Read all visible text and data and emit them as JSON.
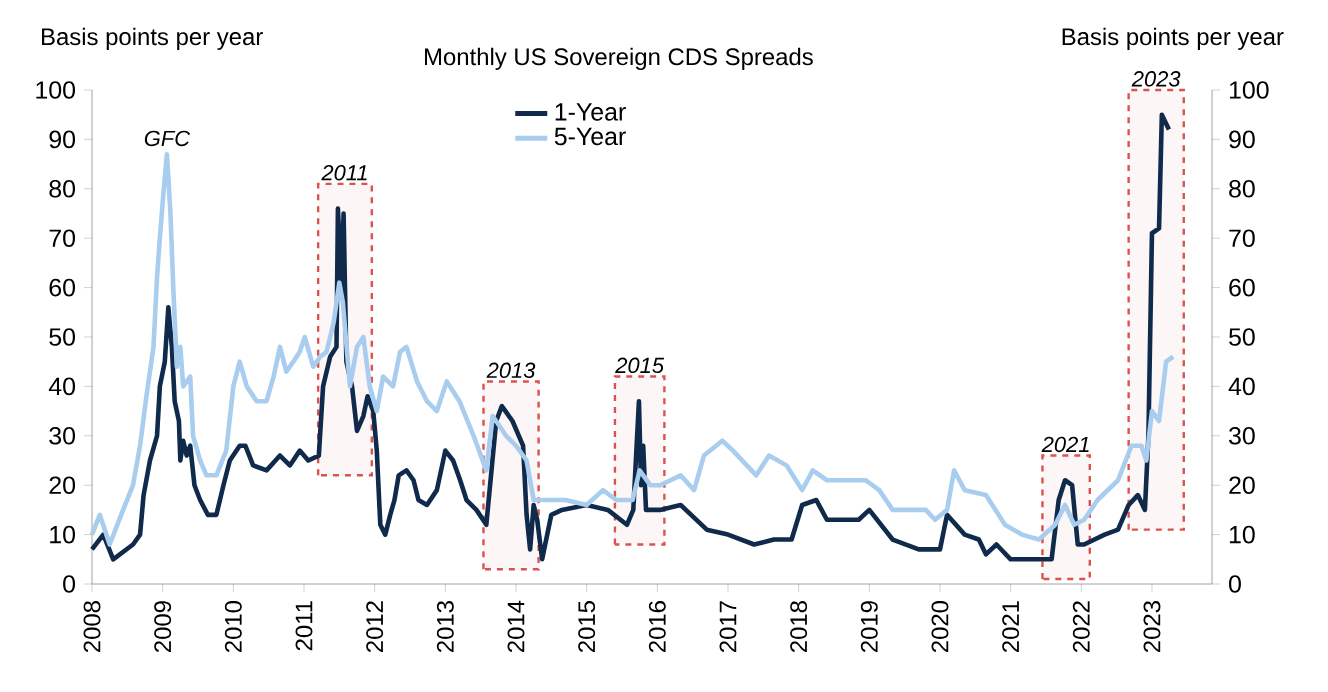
{
  "chart_data": {
    "type": "line",
    "title": "Monthly US Sovereign CDS Spreads",
    "ylabel": "Basis points per year",
    "y2label": "Basis points per year",
    "xlim": [
      2008,
      2023.85
    ],
    "xticks": [
      2008,
      2009,
      2010,
      2011,
      2012,
      2013,
      2014,
      2015,
      2016,
      2017,
      2018,
      2019,
      2020,
      2021,
      2022,
      2023
    ],
    "ylim": [
      0,
      100
    ],
    "yticks": [
      0,
      10,
      20,
      30,
      40,
      50,
      60,
      70,
      80,
      90,
      100
    ],
    "y2lim": [
      0,
      100
    ],
    "y2ticks": [
      0,
      10,
      20,
      30,
      40,
      50,
      60,
      70,
      80,
      90,
      100
    ],
    "legend": "top",
    "line_style": "solid",
    "marker": "none",
    "grid": false,
    "series": [
      {
        "name": "1-Year",
        "color": "#102a4c",
        "x": [
          2008.0,
          2008.16,
          2008.3,
          2008.58,
          2008.68,
          2008.73,
          2008.82,
          2008.92,
          2008.96,
          2009.03,
          2009.08,
          2009.13,
          2009.17,
          2009.23,
          2009.25,
          2009.29,
          2009.34,
          2009.39,
          2009.45,
          2009.53,
          2009.64,
          2009.76,
          2009.86,
          2009.95,
          2010.09,
          2010.17,
          2010.28,
          2010.47,
          2010.66,
          2010.8,
          2010.94,
          2011.06,
          2011.21,
          2011.27,
          2011.37,
          2011.46,
          2011.48,
          2011.53,
          2011.56,
          2011.6,
          2011.68,
          2011.75,
          2011.84,
          2011.9,
          2011.98,
          2012.03,
          2012.08,
          2012.15,
          2012.22,
          2012.28,
          2012.34,
          2012.45,
          2012.55,
          2012.62,
          2012.74,
          2012.88,
          2013.0,
          2013.11,
          2013.21,
          2013.3,
          2013.44,
          2013.58,
          2013.66,
          2013.72,
          2013.8,
          2013.95,
          2014.1,
          2014.15,
          2014.2,
          2014.25,
          2014.3,
          2014.37,
          2014.5,
          2014.65,
          2015.0,
          2015.3,
          2015.57,
          2015.66,
          2015.74,
          2015.77,
          2015.8,
          2015.84,
          2016.04,
          2016.33,
          2016.7,
          2017.0,
          2017.37,
          2017.65,
          2017.9,
          2018.05,
          2018.25,
          2018.4,
          2018.85,
          2019.0,
          2019.33,
          2019.7,
          2020.0,
          2020.1,
          2020.35,
          2020.55,
          2020.65,
          2020.8,
          2021.0,
          2021.4,
          2021.58,
          2021.68,
          2021.77,
          2021.87,
          2021.95,
          2022.04,
          2022.33,
          2022.52,
          2022.67,
          2022.8,
          2022.9,
          2022.95,
          2023.0,
          2023.1,
          2023.14,
          2023.24
        ],
        "values": [
          7,
          10,
          5,
          8,
          10,
          18,
          25,
          30,
          40,
          45,
          56,
          48,
          37,
          33,
          25,
          29,
          26,
          28,
          20,
          17,
          14,
          14,
          20,
          25,
          28,
          28,
          24,
          23,
          26,
          24,
          27,
          25,
          26,
          40,
          46,
          48,
          76,
          60,
          75,
          45,
          40,
          31,
          34,
          38,
          35,
          27,
          12,
          10,
          14,
          17,
          22,
          23,
          21,
          17,
          16,
          19,
          27,
          25,
          21,
          17,
          15,
          12,
          24,
          33,
          36,
          33,
          28,
          14,
          7,
          16,
          13,
          5,
          14,
          15,
          16,
          15,
          12,
          15,
          37,
          20,
          28,
          15,
          15,
          16,
          11,
          10,
          8,
          9,
          9,
          16,
          17,
          13,
          13,
          15,
          9,
          7,
          7,
          14,
          10,
          9,
          6,
          8,
          5,
          5,
          5,
          17,
          21,
          20,
          8,
          8,
          10,
          11,
          16,
          18,
          15,
          30,
          71,
          72,
          95,
          92
        ]
      },
      {
        "name": "5-Year",
        "color": "#a8cdee",
        "x": [
          2008.0,
          2008.11,
          2008.25,
          2008.44,
          2008.58,
          2008.68,
          2008.77,
          2008.87,
          2008.92,
          2008.96,
          2009.01,
          2009.06,
          2009.11,
          2009.15,
          2009.2,
          2009.25,
          2009.29,
          2009.39,
          2009.43,
          2009.53,
          2009.62,
          2009.76,
          2009.9,
          2010.0,
          2010.09,
          2010.19,
          2010.33,
          2010.47,
          2010.57,
          2010.66,
          2010.75,
          2010.85,
          2010.94,
          2011.01,
          2011.13,
          2011.23,
          2011.32,
          2011.42,
          2011.5,
          2011.55,
          2011.65,
          2011.75,
          2011.84,
          2011.93,
          2012.03,
          2012.12,
          2012.26,
          2012.36,
          2012.45,
          2012.6,
          2012.74,
          2012.88,
          2013.02,
          2013.2,
          2013.4,
          2013.58,
          2013.67,
          2013.86,
          2014.0,
          2014.15,
          2014.25,
          2014.53,
          2014.7,
          2015.0,
          2015.23,
          2015.42,
          2015.65,
          2015.75,
          2015.9,
          2016.04,
          2016.33,
          2016.52,
          2016.66,
          2016.92,
          2017.07,
          2017.4,
          2017.58,
          2017.83,
          2018.05,
          2018.2,
          2018.4,
          2018.95,
          2019.14,
          2019.33,
          2019.8,
          2019.93,
          2020.1,
          2020.2,
          2020.35,
          2020.65,
          2020.92,
          2021.16,
          2021.4,
          2021.63,
          2021.77,
          2021.9,
          2022.04,
          2022.23,
          2022.52,
          2022.71,
          2022.85,
          2022.92,
          2023.0,
          2023.1,
          2023.2,
          2023.3
        ],
        "values": [
          10,
          14,
          8,
          15,
          20,
          28,
          38,
          48,
          62,
          70,
          79,
          87,
          75,
          60,
          44,
          48,
          40,
          42,
          30,
          25,
          22,
          22,
          27,
          40,
          45,
          40,
          37,
          37,
          42,
          48,
          43,
          45,
          47,
          50,
          44,
          46,
          47,
          53,
          61,
          57,
          40,
          48,
          50,
          40,
          35,
          42,
          40,
          47,
          48,
          41,
          37,
          35,
          41,
          37,
          30,
          23,
          34,
          30,
          28,
          25,
          17,
          17,
          17,
          16,
          19,
          17,
          17,
          23,
          20,
          20,
          22,
          19,
          26,
          29,
          27,
          22,
          26,
          24,
          19,
          23,
          21,
          21,
          19,
          15,
          15,
          13,
          15,
          23,
          19,
          18,
          12,
          10,
          9,
          12,
          16,
          12,
          13,
          17,
          21,
          28,
          28,
          25,
          35,
          33,
          45,
          46
        ]
      }
    ],
    "bands": [
      {
        "axis": "x",
        "from": 2011.2,
        "to": 2011.96,
        "label": "2011",
        "color": "#d9534f"
      },
      {
        "axis": "x",
        "from": 2013.54,
        "to": 2014.32,
        "label": "2013",
        "color": "#d9534f"
      },
      {
        "axis": "x",
        "from": 2015.4,
        "to": 2016.1,
        "label": "2015",
        "color": "#d9534f"
      },
      {
        "axis": "x",
        "from": 2021.45,
        "to": 2022.12,
        "label": "2021",
        "color": "#d9534f"
      },
      {
        "axis": "x",
        "from": 2022.67,
        "to": 2023.45,
        "label": "2023",
        "color": "#d9534f"
      }
    ],
    "annotations": [
      {
        "text": "GFC",
        "x": 2009.06,
        "y": 87
      }
    ]
  }
}
